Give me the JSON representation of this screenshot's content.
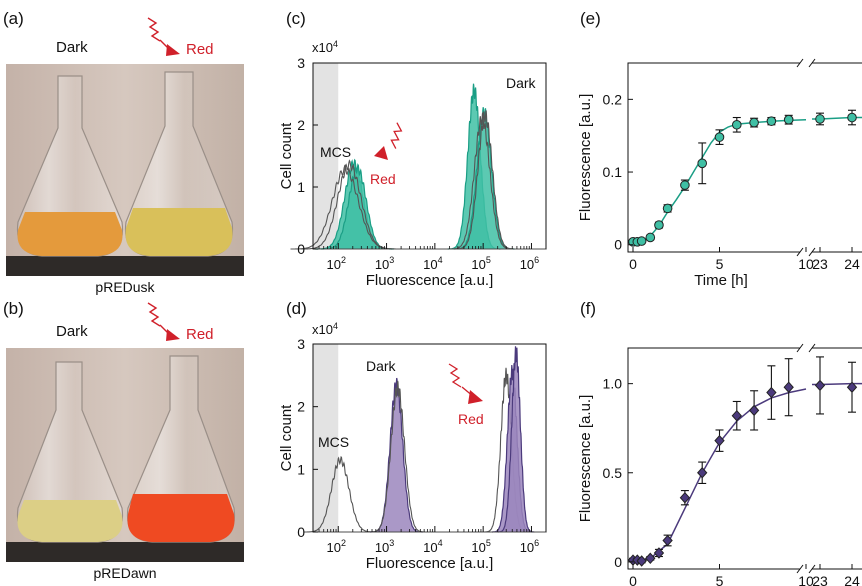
{
  "panels": {
    "a": {
      "label": "(a)",
      "left_label": "Dark",
      "right_label": "Red",
      "caption": "pREDusk"
    },
    "b": {
      "label": "(b)",
      "left_label": "Dark",
      "right_label": "Red",
      "caption": "pREDawn"
    },
    "c": {
      "label": "(c)",
      "multiplier": "x10",
      "multiplier_exp": "4",
      "dark_label": "Dark",
      "mcs_label": "MCS",
      "red_label": "Red"
    },
    "d": {
      "label": "(d)",
      "multiplier": "x10",
      "multiplier_exp": "4",
      "dark_label": "Dark",
      "mcs_label": "MCS",
      "red_label": "Red"
    },
    "e": {
      "label": "(e)"
    },
    "f": {
      "label": "(f)"
    }
  },
  "colors": {
    "teal": "#3fbfa4",
    "teal_dark": "#1a9e85",
    "purple": "#9b86bd",
    "purple_dark": "#4b3a7c",
    "red": "#d0202a",
    "mcs_band": "#e3e3e3"
  },
  "chart_data": [
    {
      "id": "c",
      "type": "area",
      "xlabel": "Fluorescence [a.u.]",
      "ylabel": "Cell count",
      "x_scale": "log",
      "xlim": [
        30,
        2000000
      ],
      "ylim": [
        0,
        30000
      ],
      "x_ticks": [
        {
          "v": 100,
          "base": "10",
          "exp": "2"
        },
        {
          "v": 1000,
          "base": "10",
          "exp": "3"
        },
        {
          "v": 10000,
          "base": "10",
          "exp": "4"
        },
        {
          "v": 100000,
          "base": "10",
          "exp": "5"
        },
        {
          "v": 1000000,
          "base": "10",
          "exp": "6"
        }
      ],
      "y_ticks": [
        {
          "v": 0,
          "label": "0"
        },
        {
          "v": 10000,
          "label": "1"
        },
        {
          "v": 20000,
          "label": "2"
        },
        {
          "v": 30000,
          "label": "3"
        }
      ],
      "mcs_band": [
        30,
        100
      ],
      "series": [
        {
          "group": "red",
          "style": "filled",
          "center": 210,
          "sigma": 0.19,
          "peak": 13800
        },
        {
          "group": "red",
          "style": "filled",
          "center": 250,
          "sigma": 0.18,
          "peak": 13000
        },
        {
          "group": "red",
          "style": "outline",
          "center": 170,
          "sigma": 0.24,
          "peak": 13600
        },
        {
          "group": "red",
          "style": "outline",
          "center": 140,
          "sigma": 0.27,
          "peak": 12800
        },
        {
          "group": "dark",
          "style": "filled",
          "center": 65000,
          "sigma": 0.13,
          "peak": 25500
        },
        {
          "group": "dark",
          "style": "filled",
          "center": 105000,
          "sigma": 0.15,
          "peak": 22000
        },
        {
          "group": "dark",
          "style": "outline",
          "center": 110000,
          "sigma": 0.15,
          "peak": 21500
        },
        {
          "group": "dark",
          "style": "outline",
          "center": 95000,
          "sigma": 0.16,
          "peak": 21000
        }
      ]
    },
    {
      "id": "d",
      "type": "area",
      "xlabel": "Fluorescence [a.u.]",
      "ylabel": "Cell count",
      "x_scale": "log",
      "xlim": [
        30,
        2000000
      ],
      "ylim": [
        0,
        30000
      ],
      "x_ticks": [
        {
          "v": 100,
          "base": "10",
          "exp": "2"
        },
        {
          "v": 1000,
          "base": "10",
          "exp": "3"
        },
        {
          "v": 10000,
          "base": "10",
          "exp": "4"
        },
        {
          "v": 100000,
          "base": "10",
          "exp": "5"
        },
        {
          "v": 1000000,
          "base": "10",
          "exp": "6"
        }
      ],
      "y_ticks": [
        {
          "v": 0,
          "label": "0"
        },
        {
          "v": 10000,
          "label": "1"
        },
        {
          "v": 20000,
          "label": "2"
        },
        {
          "v": 30000,
          "label": "3"
        }
      ],
      "mcs_band": [
        30,
        100
      ],
      "series": [
        {
          "group": "mcs",
          "style": "outline",
          "center": 110,
          "sigma": 0.18,
          "peak": 11500
        },
        {
          "group": "dark",
          "style": "filled",
          "center": 1600,
          "sigma": 0.13,
          "peak": 23500
        },
        {
          "group": "dark",
          "style": "outline",
          "center": 1700,
          "sigma": 0.14,
          "peak": 23000
        },
        {
          "group": "red",
          "style": "outline",
          "center": 300000,
          "sigma": 0.11,
          "peak": 25000
        },
        {
          "group": "red",
          "style": "filled",
          "center": 400000,
          "sigma": 0.1,
          "peak": 25500
        },
        {
          "group": "red",
          "style": "filled",
          "center": 480000,
          "sigma": 0.09,
          "peak": 28500
        }
      ]
    },
    {
      "id": "e",
      "type": "scatter",
      "xlabel": "Time [h]",
      "ylabel": "Fluorescence [a.u.]",
      "ylim": [
        -0.01,
        0.25
      ],
      "x_ticks": [
        {
          "v": 0,
          "label": "0"
        },
        {
          "v": 5,
          "label": "5"
        },
        {
          "v": 10,
          "label": "10"
        },
        {
          "v": 23,
          "label": "23"
        },
        {
          "v": 24,
          "label": "24"
        }
      ],
      "y_ticks": [
        {
          "v": 0,
          "label": "0"
        },
        {
          "v": 0.1,
          "label": "0.1"
        },
        {
          "v": 0.2,
          "label": "0.2"
        }
      ],
      "marker": "circle",
      "points": [
        {
          "x": 0,
          "y": 0.004,
          "err": 0.002
        },
        {
          "x": 0.25,
          "y": 0.004,
          "err": 0.002
        },
        {
          "x": 0.5,
          "y": 0.005,
          "err": 0.002
        },
        {
          "x": 1,
          "y": 0.01,
          "err": 0.003
        },
        {
          "x": 1.5,
          "y": 0.027,
          "err": 0.004
        },
        {
          "x": 2,
          "y": 0.05,
          "err": 0.005
        },
        {
          "x": 3,
          "y": 0.082,
          "err": 0.007
        },
        {
          "x": 4,
          "y": 0.112,
          "err": 0.028
        },
        {
          "x": 5,
          "y": 0.148,
          "err": 0.01
        },
        {
          "x": 6,
          "y": 0.165,
          "err": 0.01
        },
        {
          "x": 7,
          "y": 0.168,
          "err": 0.006
        },
        {
          "x": 8,
          "y": 0.17,
          "err": 0.005
        },
        {
          "x": 9,
          "y": 0.172,
          "err": 0.006
        },
        {
          "x": 23,
          "y": 0.173,
          "err": 0.008
        },
        {
          "x": 24,
          "y": 0.175,
          "err": 0.01
        }
      ],
      "fit": [
        [
          0,
          0.003
        ],
        [
          0.5,
          0.004
        ],
        [
          1,
          0.012
        ],
        [
          1.5,
          0.026
        ],
        [
          2,
          0.045
        ],
        [
          2.5,
          0.062
        ],
        [
          3,
          0.08
        ],
        [
          3.5,
          0.1
        ],
        [
          4,
          0.12
        ],
        [
          4.5,
          0.14
        ],
        [
          5,
          0.155
        ],
        [
          5.5,
          0.162
        ],
        [
          6,
          0.166
        ],
        [
          7,
          0.168
        ],
        [
          8,
          0.17
        ],
        [
          9,
          0.171
        ],
        [
          10,
          0.172
        ],
        [
          23,
          0.173
        ],
        [
          24,
          0.175
        ]
      ]
    },
    {
      "id": "f",
      "type": "scatter",
      "xlabel": "Time [h]",
      "ylabel": "Fluorescence [a.u.]",
      "ylim": [
        -0.04,
        1.2
      ],
      "x_ticks": [
        {
          "v": 0,
          "label": "0"
        },
        {
          "v": 5,
          "label": "5"
        },
        {
          "v": 10,
          "label": "10"
        },
        {
          "v": 23,
          "label": "23"
        },
        {
          "v": 24,
          "label": "24"
        }
      ],
      "y_ticks": [
        {
          "v": 0,
          "label": "0"
        },
        {
          "v": 0.5,
          "label": "0.5"
        },
        {
          "v": 1.0,
          "label": "1.0"
        }
      ],
      "marker": "diamond",
      "points": [
        {
          "x": 0,
          "y": 0.01,
          "err": 0.01
        },
        {
          "x": 0.25,
          "y": 0.01,
          "err": 0.01
        },
        {
          "x": 0.5,
          "y": 0.005,
          "err": 0.01
        },
        {
          "x": 1,
          "y": 0.02,
          "err": 0.01
        },
        {
          "x": 1.5,
          "y": 0.05,
          "err": 0.02
        },
        {
          "x": 2,
          "y": 0.12,
          "err": 0.03
        },
        {
          "x": 3,
          "y": 0.36,
          "err": 0.04
        },
        {
          "x": 4,
          "y": 0.5,
          "err": 0.06
        },
        {
          "x": 5,
          "y": 0.68,
          "err": 0.06
        },
        {
          "x": 6,
          "y": 0.82,
          "err": 0.08
        },
        {
          "x": 7,
          "y": 0.85,
          "err": 0.11
        },
        {
          "x": 8,
          "y": 0.95,
          "err": 0.15
        },
        {
          "x": 9,
          "y": 0.98,
          "err": 0.16
        },
        {
          "x": 23,
          "y": 0.99,
          "err": 0.16
        },
        {
          "x": 24,
          "y": 0.98,
          "err": 0.14
        }
      ],
      "fit": [
        [
          0,
          0.0
        ],
        [
          1,
          0.02
        ],
        [
          2,
          0.1
        ],
        [
          3,
          0.3
        ],
        [
          4,
          0.5
        ],
        [
          5,
          0.67
        ],
        [
          6,
          0.79
        ],
        [
          7,
          0.87
        ],
        [
          8,
          0.92
        ],
        [
          9,
          0.95
        ],
        [
          10,
          0.97
        ],
        [
          23,
          0.995
        ],
        [
          24,
          1.0
        ]
      ]
    }
  ]
}
